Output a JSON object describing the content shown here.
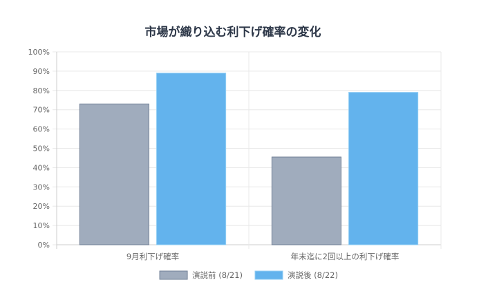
{
  "chart_data": {
    "type": "bar",
    "title": "市場が織り込む利下げ確率の変化",
    "categories": [
      "9月利下げ確率",
      "年末迄に2回以上の利下げ確率"
    ],
    "series": [
      {
        "name": "演説前 (8/21)",
        "values": [
          73,
          45.5
        ],
        "color": "#a0acbd",
        "stroke": "#718096"
      },
      {
        "name": "演説後 (8/22)",
        "values": [
          89,
          79
        ],
        "color": "#63b3ed",
        "stroke": "#90cdf4"
      }
    ],
    "ylim": [
      0,
      100
    ],
    "y_ticks": [
      "0%",
      "10%",
      "20%",
      "30%",
      "40%",
      "50%",
      "60%",
      "70%",
      "80%",
      "90%",
      "100%"
    ],
    "grid": true,
    "legend_position": "bottom",
    "colors": {
      "title": "#2d3748",
      "ticks": "#666666",
      "grid": "#e8e8e8",
      "axis": "#cccccc"
    }
  }
}
